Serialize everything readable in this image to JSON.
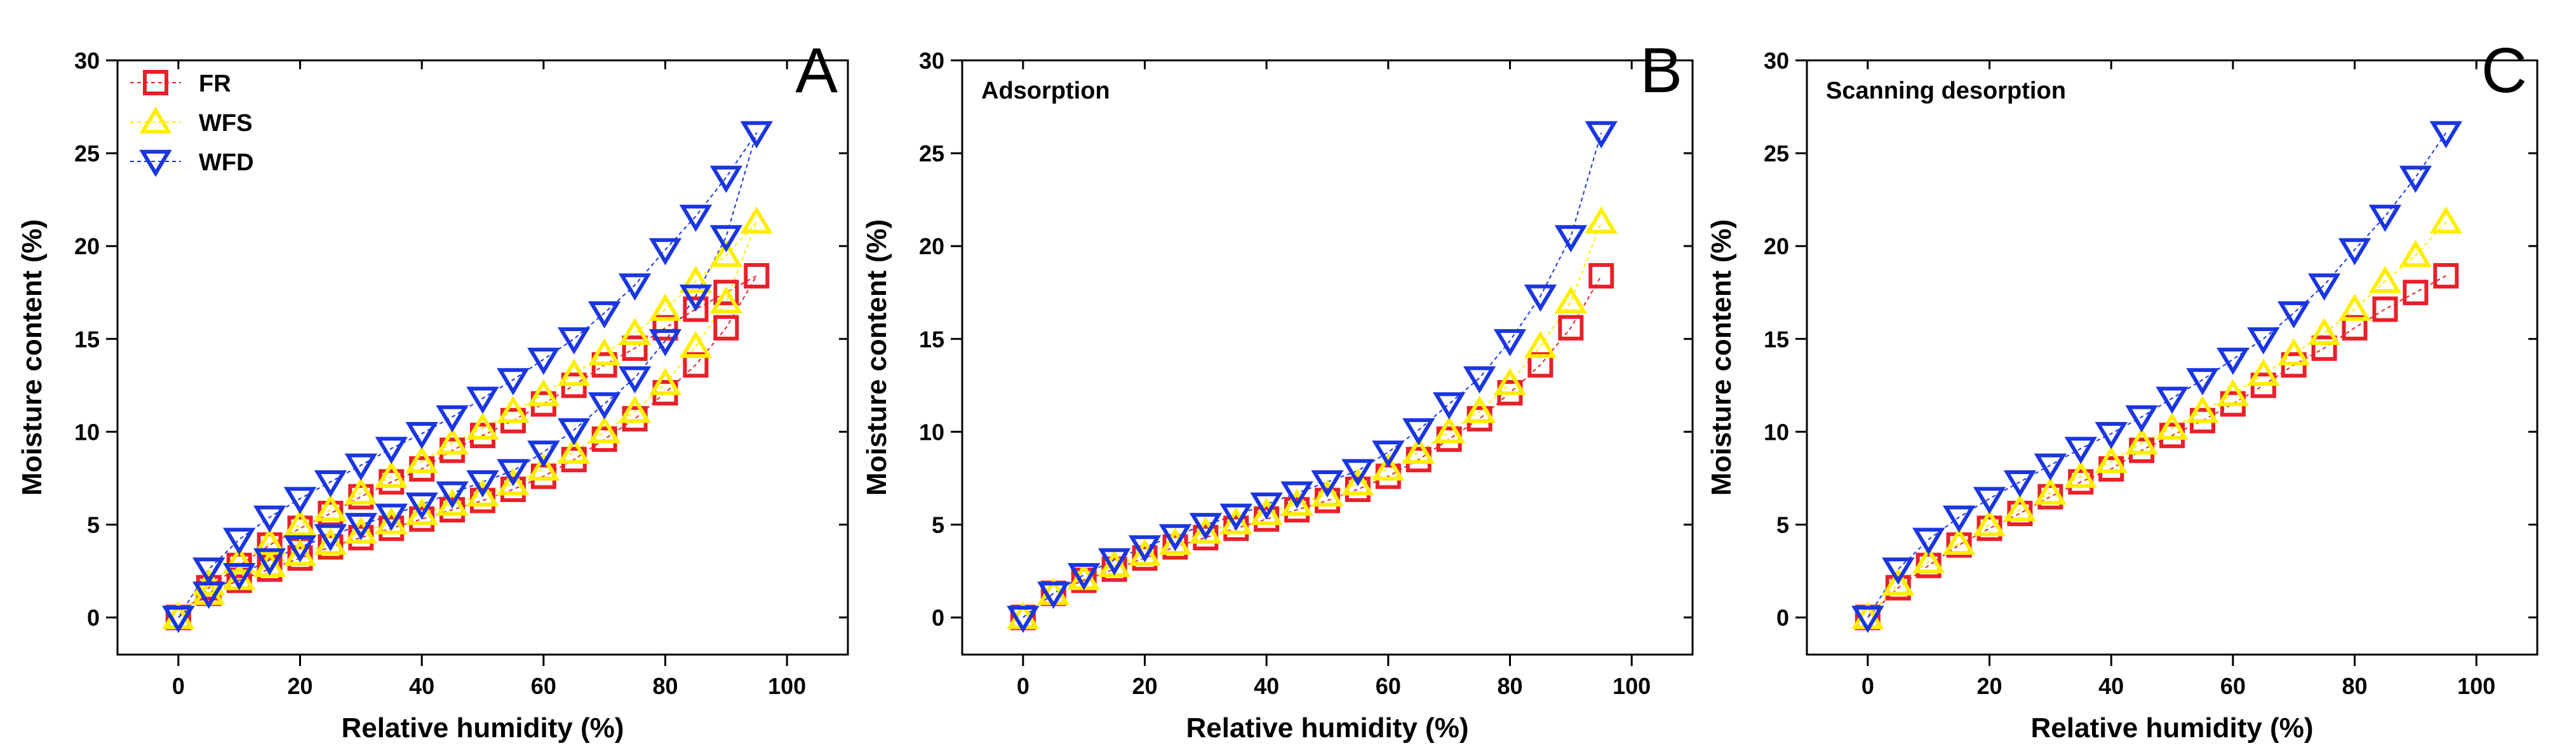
{
  "chart_data": [
    {
      "type": "scatter",
      "panel": "A",
      "title": "",
      "xlabel": "Relative humidity (%)",
      "ylabel": "Moisture content (%)",
      "xlim": [
        -10,
        110
      ],
      "ylim": [
        -2,
        30
      ],
      "xticks": [
        0,
        20,
        40,
        60,
        80,
        100
      ],
      "yticks": [
        0,
        5,
        10,
        15,
        20,
        25,
        30
      ],
      "grid": false,
      "legend": "top-left",
      "series": [
        {
          "name": "FR",
          "color": "#e8202a",
          "marker": "square",
          "dashed_line": true,
          "x": [
            0,
            5,
            10,
            15,
            20,
            25,
            30,
            35,
            40,
            45,
            50,
            55,
            60,
            65,
            70,
            75,
            80,
            85,
            90,
            95,
            90,
            85,
            80,
            75,
            70,
            65,
            60,
            55,
            50,
            45,
            40,
            35,
            30,
            25,
            20,
            15,
            10,
            5,
            0
          ],
          "y": [
            0,
            1.3,
            2.0,
            2.6,
            3.2,
            3.8,
            4.3,
            4.8,
            5.3,
            5.8,
            6.3,
            6.9,
            7.6,
            8.5,
            9.6,
            10.7,
            12.1,
            13.6,
            15.6,
            18.4,
            17.5,
            16.6,
            15.6,
            14.5,
            13.6,
            12.5,
            11.5,
            10.6,
            9.8,
            9.0,
            8.0,
            7.3,
            6.5,
            5.6,
            4.8,
            3.9,
            2.8,
            1.6,
            0
          ]
        },
        {
          "name": "WFS",
          "color": "#ffee00",
          "marker": "triangle-up",
          "dashed_line": true,
          "x": [
            0,
            5,
            10,
            15,
            20,
            25,
            30,
            35,
            40,
            45,
            50,
            55,
            60,
            65,
            70,
            75,
            80,
            85,
            90,
            95,
            90,
            85,
            80,
            75,
            70,
            65,
            60,
            55,
            50,
            45,
            40,
            35,
            30,
            25,
            20,
            15,
            10,
            5,
            0
          ],
          "y": [
            0,
            1.3,
            2.1,
            2.8,
            3.4,
            4.0,
            4.6,
            5.1,
            5.6,
            6.1,
            6.6,
            7.2,
            8.0,
            8.9,
            10.0,
            11.1,
            12.6,
            14.6,
            17.0,
            21.3,
            19.5,
            18.1,
            16.6,
            15.3,
            14.2,
            13.1,
            12.0,
            11.1,
            10.2,
            9.4,
            8.4,
            7.6,
            6.7,
            5.8,
            5.0,
            4.0,
            3.0,
            1.8,
            0
          ]
        },
        {
          "name": "WFD",
          "color": "#1a36e0",
          "marker": "triangle-down",
          "dashed_line": true,
          "x": [
            0,
            5,
            10,
            15,
            20,
            25,
            30,
            35,
            40,
            45,
            50,
            55,
            60,
            65,
            70,
            75,
            80,
            85,
            90,
            95,
            90,
            85,
            80,
            75,
            70,
            65,
            60,
            55,
            50,
            45,
            40,
            35,
            30,
            25,
            20,
            15,
            10,
            5,
            0
          ],
          "y": [
            0,
            1.3,
            2.3,
            3.1,
            3.8,
            4.4,
            5.0,
            5.5,
            6.1,
            6.7,
            7.3,
            7.9,
            8.9,
            10.1,
            11.5,
            12.9,
            14.9,
            17.3,
            20.5,
            26.1,
            23.7,
            21.6,
            19.8,
            17.9,
            16.4,
            15.0,
            13.9,
            12.8,
            11.8,
            10.8,
            9.9,
            9.1,
            8.2,
            7.3,
            6.4,
            5.4,
            4.2,
            2.6,
            0
          ]
        }
      ]
    },
    {
      "type": "scatter",
      "panel": "B",
      "title": "Adsorption",
      "xlabel": "Relative humidity (%)",
      "ylabel": "Moisture content (%)",
      "xlim": [
        -10,
        110
      ],
      "ylim": [
        -2,
        30
      ],
      "xticks": [
        0,
        20,
        40,
        60,
        80,
        100
      ],
      "yticks": [
        0,
        5,
        10,
        15,
        20,
        25,
        30
      ],
      "grid": false,
      "series": [
        {
          "name": "FR",
          "color": "#e8202a",
          "marker": "square",
          "dashed_line": true,
          "x": [
            0,
            5,
            10,
            15,
            20,
            25,
            30,
            35,
            40,
            45,
            50,
            55,
            60,
            65,
            70,
            75,
            80,
            85,
            90,
            95
          ],
          "y": [
            0,
            1.3,
            2.0,
            2.6,
            3.2,
            3.8,
            4.3,
            4.8,
            5.3,
            5.8,
            6.3,
            6.9,
            7.6,
            8.5,
            9.6,
            10.7,
            12.1,
            13.6,
            15.6,
            18.4
          ]
        },
        {
          "name": "WFS",
          "color": "#ffee00",
          "marker": "triangle-up",
          "dashed_line": true,
          "x": [
            0,
            5,
            10,
            15,
            20,
            25,
            30,
            35,
            40,
            45,
            50,
            55,
            60,
            65,
            70,
            75,
            80,
            85,
            90,
            95
          ],
          "y": [
            0,
            1.3,
            2.1,
            2.8,
            3.4,
            4.0,
            4.6,
            5.1,
            5.6,
            6.1,
            6.6,
            7.2,
            8.0,
            8.9,
            10.0,
            11.1,
            12.6,
            14.6,
            17.0,
            21.3
          ]
        },
        {
          "name": "WFD",
          "color": "#1a36e0",
          "marker": "triangle-down",
          "dashed_line": true,
          "x": [
            0,
            5,
            10,
            15,
            20,
            25,
            30,
            35,
            40,
            45,
            50,
            55,
            60,
            65,
            70,
            75,
            80,
            85,
            90,
            95
          ],
          "y": [
            0,
            1.3,
            2.3,
            3.1,
            3.8,
            4.4,
            5.0,
            5.5,
            6.1,
            6.7,
            7.3,
            7.9,
            8.9,
            10.1,
            11.5,
            12.9,
            14.9,
            17.3,
            20.5,
            26.1
          ]
        }
      ]
    },
    {
      "type": "scatter",
      "panel": "C",
      "title": "Scanning desorption",
      "xlabel": "Relative humidity (%)",
      "ylabel": "Moisture content (%)",
      "xlim": [
        -10,
        110
      ],
      "ylim": [
        -2,
        30
      ],
      "xticks": [
        0,
        20,
        40,
        60,
        80,
        100
      ],
      "yticks": [
        0,
        5,
        10,
        15,
        20,
        25,
        30
      ],
      "grid": false,
      "series": [
        {
          "name": "FR",
          "color": "#e8202a",
          "marker": "square",
          "dashed_line": true,
          "x": [
            95,
            90,
            85,
            80,
            75,
            70,
            65,
            60,
            55,
            50,
            45,
            40,
            35,
            30,
            25,
            20,
            15,
            10,
            5,
            0
          ],
          "y": [
            18.4,
            17.5,
            16.6,
            15.6,
            14.5,
            13.6,
            12.5,
            11.5,
            10.6,
            9.8,
            9.0,
            8.0,
            7.3,
            6.5,
            5.6,
            4.8,
            3.9,
            2.8,
            1.6,
            0
          ]
        },
        {
          "name": "WFS",
          "color": "#ffee00",
          "marker": "triangle-up",
          "dashed_line": true,
          "x": [
            95,
            90,
            85,
            80,
            75,
            70,
            65,
            60,
            55,
            50,
            45,
            40,
            35,
            30,
            25,
            20,
            15,
            10,
            5,
            0
          ],
          "y": [
            21.3,
            19.5,
            18.1,
            16.6,
            15.3,
            14.2,
            13.1,
            12.0,
            11.1,
            10.2,
            9.4,
            8.4,
            7.6,
            6.7,
            5.8,
            5.0,
            4.0,
            3.0,
            1.8,
            0
          ]
        },
        {
          "name": "WFD",
          "color": "#1a36e0",
          "marker": "triangle-down",
          "dashed_line": true,
          "x": [
            95,
            90,
            85,
            80,
            75,
            70,
            65,
            60,
            55,
            50,
            45,
            40,
            35,
            30,
            25,
            20,
            15,
            10,
            5,
            0
          ],
          "y": [
            26.1,
            23.7,
            21.6,
            19.8,
            17.9,
            16.4,
            15.0,
            13.9,
            12.8,
            11.8,
            10.8,
            9.9,
            9.1,
            8.2,
            7.3,
            6.4,
            5.4,
            4.2,
            2.6,
            0
          ]
        }
      ]
    }
  ]
}
